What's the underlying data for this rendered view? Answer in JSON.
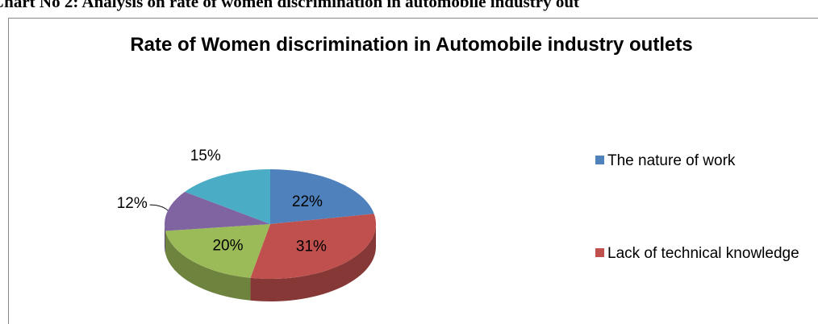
{
  "heading": "Chart No 2: Analysis on rate of women discrimination in automobile industry out",
  "chart_data": {
    "type": "pie",
    "three_d": true,
    "title": "Rate of Women discrimination in Automobile industry outlets",
    "categories": [
      "The nature of work",
      "Lack of technical knowledge",
      null,
      null,
      null
    ],
    "values": [
      22,
      31,
      20,
      12,
      15
    ],
    "value_labels": [
      "22%",
      "31%",
      "20%",
      "12%",
      "15%"
    ],
    "colors": [
      "#4f81bd",
      "#c0504d",
      "#9bbb59",
      "#8064a2",
      "#4bacc6"
    ],
    "legend": "right"
  }
}
